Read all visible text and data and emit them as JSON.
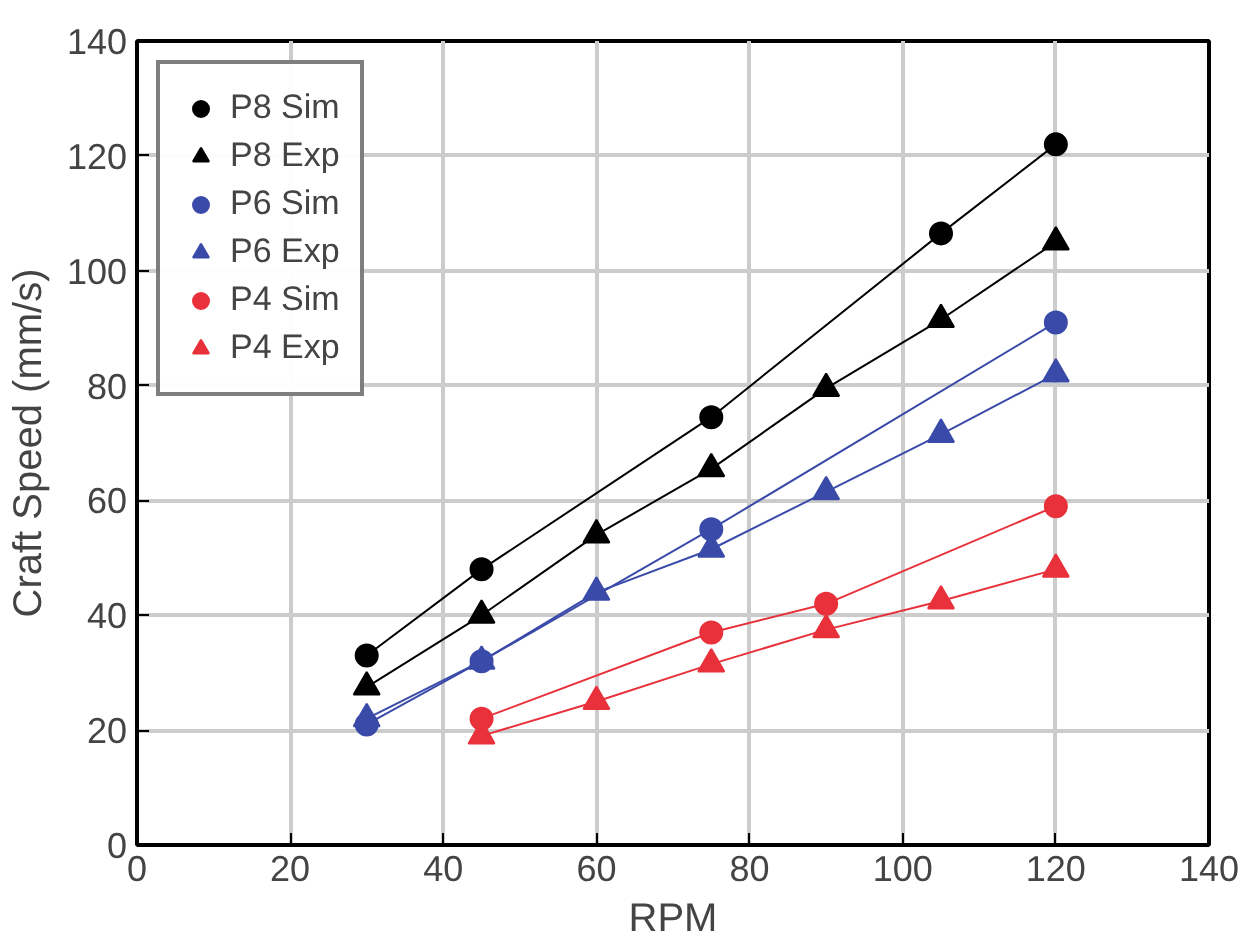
{
  "chart_data": {
    "type": "line",
    "xlabel": "RPM",
    "ylabel": "Craft Speed (mm/s)",
    "xlim": [
      0,
      140
    ],
    "ylim": [
      0,
      140
    ],
    "xticks": [
      0,
      20,
      40,
      60,
      80,
      100,
      120,
      140
    ],
    "yticks": [
      0,
      20,
      40,
      60,
      80,
      100,
      120,
      140
    ],
    "grid": true,
    "legend": "top left",
    "line_style": "solid",
    "series": [
      {
        "name": "P8 Sim",
        "color": "#000000",
        "marker": "circle",
        "x": [
          30,
          45,
          75,
          105,
          120
        ],
        "values": [
          33,
          48,
          74.5,
          106.5,
          122
        ]
      },
      {
        "name": "P8 Exp",
        "color": "#000000",
        "marker": "triangle",
        "x": [
          30,
          45,
          60,
          75,
          90,
          105,
          120
        ],
        "values": [
          27.5,
          40,
          54,
          65.5,
          79.5,
          91.5,
          105
        ]
      },
      {
        "name": "P6 Sim",
        "color": "#3a4aa8",
        "marker": "circle",
        "x": [
          30,
          45,
          75,
          120
        ],
        "values": [
          21,
          32,
          55,
          91
        ]
      },
      {
        "name": "P6 Exp",
        "color": "#3a4aa8",
        "marker": "triangle",
        "x": [
          30,
          45,
          60,
          75,
          90,
          105,
          120
        ],
        "values": [
          22,
          32,
          44,
          51.5,
          61.5,
          71.5,
          82
        ]
      },
      {
        "name": "P4 Sim",
        "color": "#e8313a",
        "marker": "circle",
        "x": [
          45,
          75,
          90,
          120
        ],
        "values": [
          22,
          37,
          42,
          59
        ]
      },
      {
        "name": "P4 Exp",
        "color": "#e8313a",
        "marker": "triangle",
        "x": [
          45,
          60,
          75,
          90,
          105,
          120
        ],
        "values": [
          19,
          25,
          31.5,
          37.5,
          42.5,
          48
        ]
      }
    ]
  }
}
